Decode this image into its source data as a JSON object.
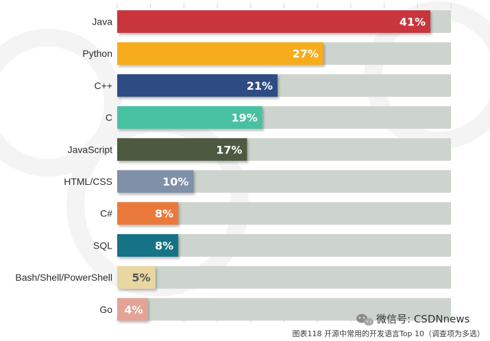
{
  "chart_data": {
    "type": "bar",
    "orientation": "horizontal",
    "categories": [
      "Java",
      "Python",
      "C++",
      "C",
      "JavaScript",
      "HTML/CSS",
      "C#",
      "SQL",
      "Bash/Shell/PowerShell",
      "Go"
    ],
    "values": [
      41,
      27,
      21,
      19,
      17,
      10,
      8,
      8,
      5,
      4
    ],
    "value_labels": [
      "41%",
      "27%",
      "21%",
      "19%",
      "17%",
      "10%",
      "8%",
      "8%",
      "5%",
      "4%"
    ],
    "colors": [
      "#c9363c",
      "#f6ac1c",
      "#2f4b84",
      "#46c1a1",
      "#4e5a41",
      "#7f90a8",
      "#e97a3a",
      "#127285",
      "#e9d7a1",
      "#e3a397"
    ],
    "label_colors": [
      "#ffffff",
      "#ffffff",
      "#ffffff",
      "#ffffff",
      "#ffffff",
      "#ffffff",
      "#ffffff",
      "#ffffff",
      "#555555",
      "#ffffff"
    ],
    "track_color": "#cdd3cd",
    "xlim": [
      0,
      41
    ],
    "title": "",
    "xlabel": "",
    "ylabel": "",
    "legend": "none",
    "grid": false
  },
  "caption": "图表118 开源中常用的开发语言Top 10（调查项为多选）",
  "watermark": {
    "text": "微信号: CSDNnews",
    "icon": "wechat-icon"
  }
}
